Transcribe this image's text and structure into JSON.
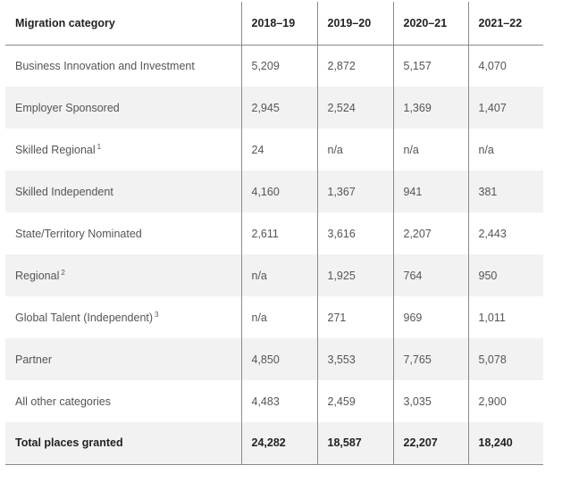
{
  "table": {
    "headers": [
      "Migration category",
      "2018–19",
      "2019–20",
      "2020–21",
      "2021–22"
    ],
    "rows": [
      {
        "label": "Business Innovation and Investment",
        "sup": "",
        "values": [
          "5,209",
          "2,872",
          "5,157",
          "4,070"
        ]
      },
      {
        "label": "Employer Sponsored",
        "sup": "",
        "values": [
          "2,945",
          "2,524",
          "1,369",
          "1,407"
        ]
      },
      {
        "label": "Skilled Regional",
        "sup": "1",
        "values": [
          "24",
          "n/a",
          "n/a",
          "n/a"
        ]
      },
      {
        "label": "Skilled Independent",
        "sup": "",
        "values": [
          "4,160",
          "1,367",
          "941",
          "381"
        ]
      },
      {
        "label": "State/Territory Nominated",
        "sup": "",
        "values": [
          "2,611",
          "3,616",
          "2,207",
          "2,443"
        ]
      },
      {
        "label": "Regional",
        "sup": "2",
        "values": [
          "n/a",
          "1,925",
          "764",
          "950"
        ]
      },
      {
        "label": "Global Talent (Independent)",
        "sup": "3",
        "values": [
          "n/a",
          "271",
          "969",
          "1,011"
        ]
      },
      {
        "label": "Partner",
        "sup": "",
        "values": [
          "4,850",
          "3,553",
          "7,765",
          "5,078"
        ]
      },
      {
        "label": "All other categories",
        "sup": "",
        "values": [
          "4,483",
          "2,459",
          "3,035",
          "2,900"
        ]
      }
    ],
    "total": {
      "label": "Total places granted",
      "values": [
        "24,282",
        "18,587",
        "22,207",
        "18,240"
      ]
    }
  }
}
